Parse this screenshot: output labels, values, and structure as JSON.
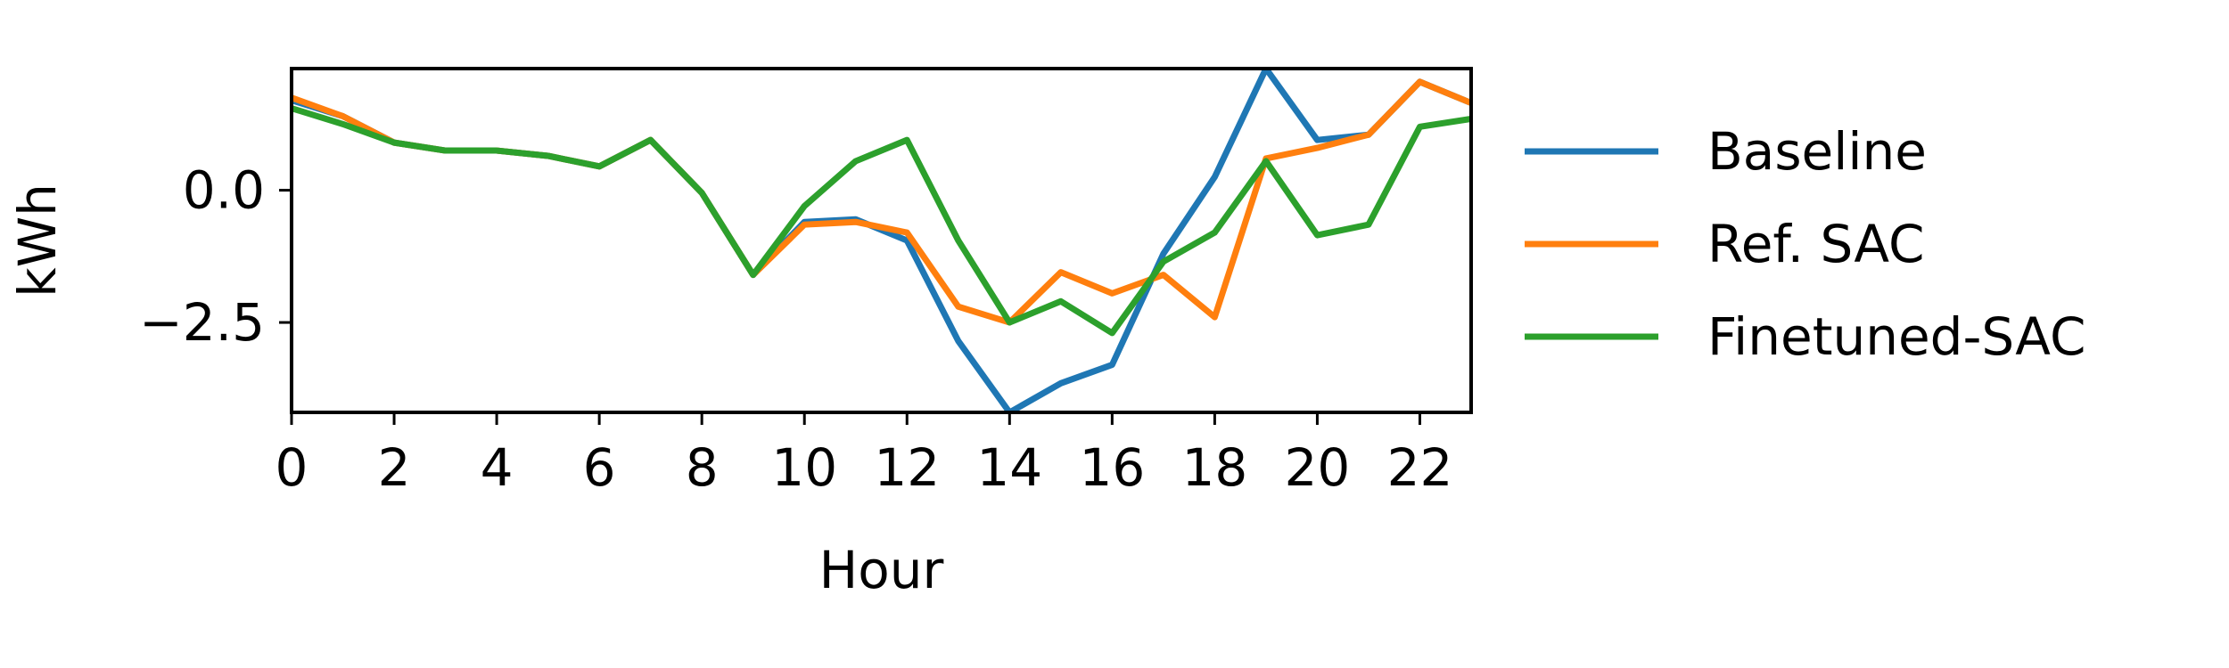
{
  "chart_data": {
    "type": "line",
    "title": "",
    "xlabel": "Hour",
    "ylabel": "kWh",
    "x": [
      0,
      1,
      2,
      3,
      4,
      5,
      6,
      7,
      8,
      9,
      10,
      11,
      12,
      13,
      14,
      15,
      16,
      17,
      18,
      19,
      20,
      21,
      22,
      23
    ],
    "xlim": [
      0,
      23
    ],
    "ylim": [
      -4.2,
      2.3
    ],
    "xticks": [
      0,
      2,
      4,
      6,
      8,
      10,
      12,
      14,
      16,
      18,
      20,
      22
    ],
    "yticks": [
      0.0,
      -2.5
    ],
    "ytick_labels": [
      "0.0",
      "−2.5"
    ],
    "grid": false,
    "legend_position": "outside-right",
    "series": [
      {
        "name": "Baseline",
        "color": "#1f77b4",
        "values": [
          1.7,
          1.4,
          0.9,
          0.75,
          0.75,
          0.65,
          0.45,
          0.95,
          -0.05,
          -1.6,
          -0.6,
          -0.55,
          -0.95,
          -2.85,
          -4.2,
          -3.65,
          -3.3,
          -1.2,
          0.25,
          2.3,
          0.95,
          1.05,
          2.05,
          1.65
        ]
      },
      {
        "name": "Ref. SAC",
        "color": "#ff7f0e",
        "values": [
          1.75,
          1.4,
          0.9,
          0.75,
          0.75,
          0.65,
          0.45,
          0.95,
          -0.05,
          -1.6,
          -0.65,
          -0.6,
          -0.8,
          -2.2,
          -2.5,
          -1.55,
          -1.95,
          -1.6,
          -2.4,
          0.6,
          0.8,
          1.05,
          2.05,
          1.65
        ]
      },
      {
        "name": "Finetuned-SAC",
        "color": "#2ca02c",
        "values": [
          1.55,
          1.25,
          0.9,
          0.75,
          0.75,
          0.65,
          0.45,
          0.95,
          -0.05,
          -1.6,
          -0.3,
          0.55,
          0.95,
          -0.95,
          -2.5,
          -2.1,
          -2.7,
          -1.35,
          -0.8,
          0.55,
          -0.85,
          -0.65,
          1.2,
          1.35
        ]
      }
    ]
  }
}
